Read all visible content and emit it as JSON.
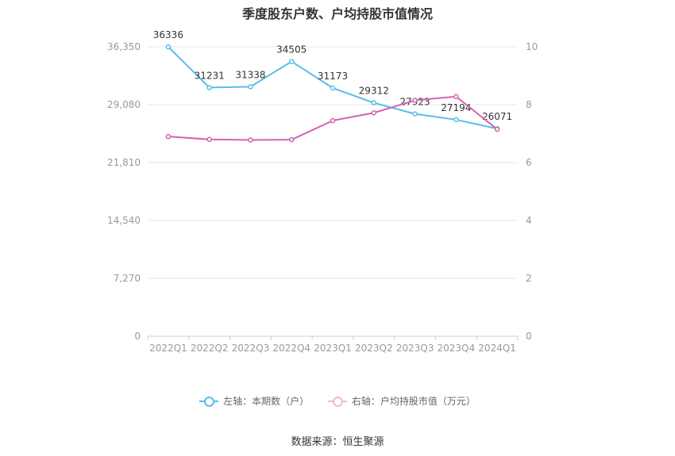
{
  "title": "季度股东户数、户均持股市值情况",
  "source": "数据来源：恒生聚源",
  "colors": {
    "left": "#5bbcec",
    "right": "#d462b0",
    "grid": "#e6e6ee",
    "axis": "#cccccc"
  },
  "legend": {
    "left": "左轴：本期数（户）",
    "right": "右轴：户均持股市值（万元）"
  },
  "chart_data": {
    "type": "line",
    "categories": [
      "2022Q1",
      "2022Q2",
      "2022Q3",
      "2022Q4",
      "2023Q1",
      "2023Q2",
      "2023Q3",
      "2023Q4",
      "2024Q1"
    ],
    "left_axis": {
      "min": 0,
      "max": 36350,
      "ticks": [
        "0",
        "7,270",
        "14,540",
        "21,810",
        "29,080",
        "36,350"
      ],
      "tick_values": [
        0,
        7270,
        14540,
        21810,
        29080,
        36350
      ]
    },
    "right_axis": {
      "min": 0,
      "max": 10,
      "ticks": [
        "0",
        "2",
        "4",
        "6",
        "8",
        "10"
      ],
      "tick_values": [
        0,
        2,
        4,
        6,
        8,
        10
      ]
    },
    "series": [
      {
        "name": "左轴：本期数（户）",
        "axis": "left",
        "values": [
          36336,
          31231,
          31338,
          34505,
          31173,
          29312,
          27923,
          27194,
          26071
        ],
        "labels": [
          "36336",
          "31231",
          "31338",
          "34505",
          "31173",
          "29312",
          "27923",
          "27194",
          "26071"
        ]
      },
      {
        "name": "右轴：户均持股市值（万元）",
        "axis": "right",
        "values": [
          6.9,
          6.8,
          6.78,
          6.79,
          7.45,
          7.72,
          8.15,
          8.28,
          7.15
        ]
      }
    ],
    "grid": true,
    "legend_position": "bottom"
  }
}
